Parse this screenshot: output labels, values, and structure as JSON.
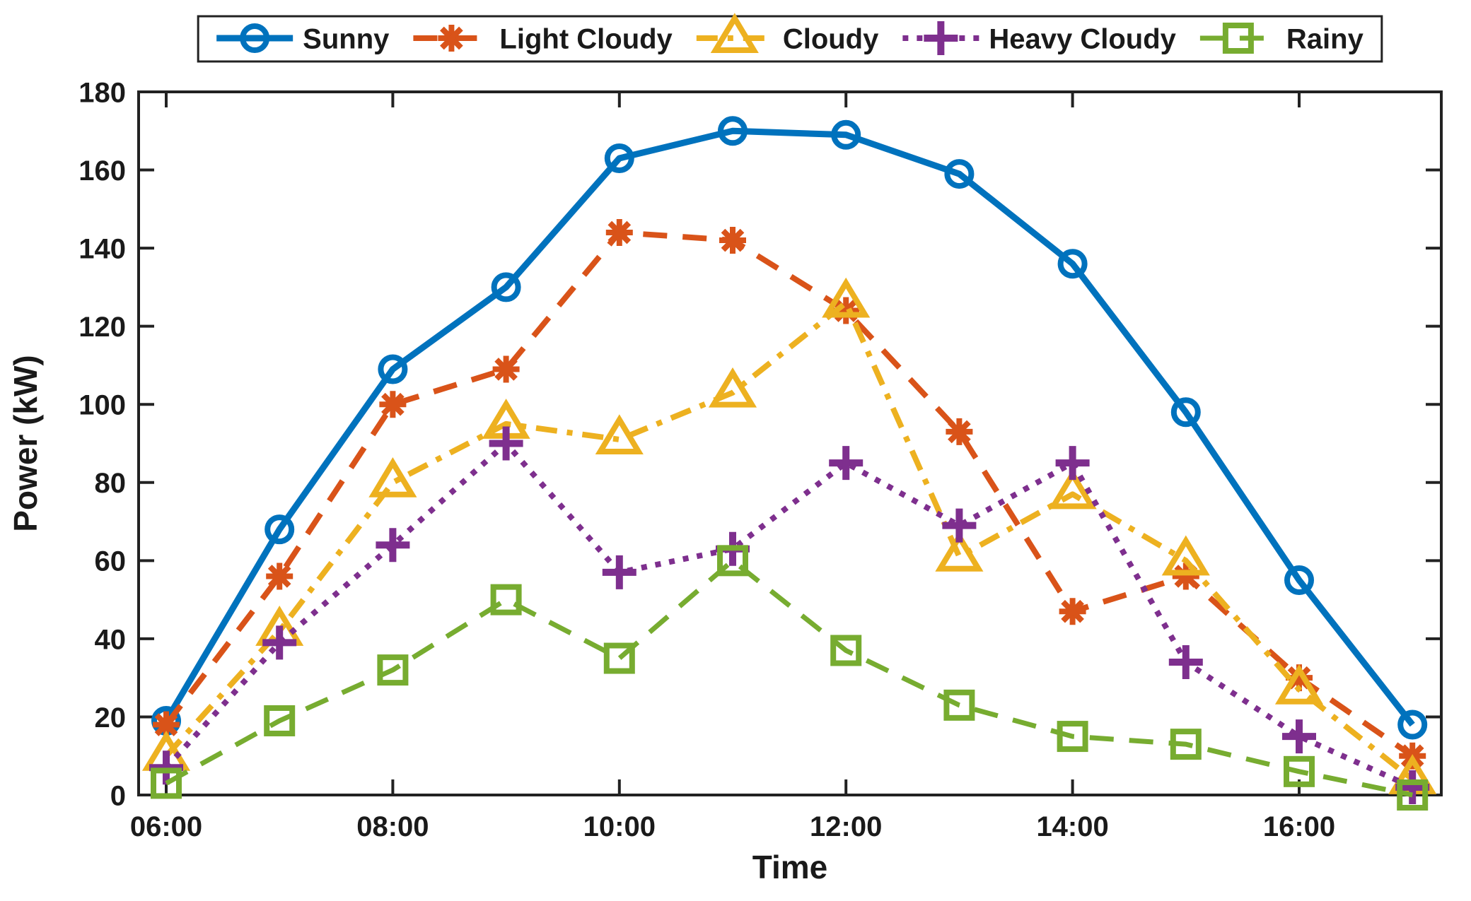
{
  "figure": {
    "background": "#ffffff",
    "axis_color": "#222222",
    "text_color": "#1a1a1a"
  },
  "chart_data": {
    "type": "line",
    "title": "",
    "xlabel": "Time",
    "ylabel": "Power (kW)",
    "x_categories": [
      "06:00",
      "07:00",
      "08:00",
      "09:00",
      "10:00",
      "11:00",
      "12:00",
      "13:00",
      "14:00",
      "15:00",
      "16:00",
      "17:00"
    ],
    "x_tick_labels": [
      "06:00",
      "08:00",
      "10:00",
      "12:00",
      "14:00",
      "16:00"
    ],
    "y_ticks": [
      0,
      20,
      40,
      60,
      80,
      100,
      120,
      140,
      160,
      180
    ],
    "ylim": [
      0,
      180
    ],
    "grid": false,
    "legend_position": "top-horizontal-boxed",
    "series": [
      {
        "name": "Sunny",
        "color": "#0072BD",
        "line_style": "solid",
        "marker": "circle",
        "line_width": 9,
        "values": [
          19,
          68,
          109,
          130,
          163,
          170,
          169,
          159,
          136,
          98,
          55,
          18
        ]
      },
      {
        "name": "Light Cloudy",
        "color": "#D95319",
        "line_style": "dashed",
        "marker": "asterisk",
        "line_width": 8,
        "values": [
          18,
          56,
          100,
          109,
          144,
          142,
          124,
          93,
          47,
          56,
          30,
          10
        ]
      },
      {
        "name": "Cloudy",
        "color": "#EDB120",
        "line_style": "dash-dot",
        "marker": "triangle-up",
        "line_width": 8,
        "values": [
          10,
          42,
          80,
          95,
          91,
          103,
          126,
          61,
          77,
          60,
          27,
          4
        ]
      },
      {
        "name": "Heavy Cloudy",
        "color": "#7E2F8E",
        "line_style": "dotted",
        "marker": "plus",
        "line_width": 8,
        "values": [
          7,
          39,
          64,
          90,
          57,
          63,
          85,
          69,
          85,
          34,
          15,
          2
        ]
      },
      {
        "name": "Rainy",
        "color": "#77AC30",
        "line_style": "dashed",
        "marker": "square",
        "line_width": 7,
        "values": [
          3,
          19,
          32,
          50,
          35,
          60,
          37,
          23,
          15,
          13,
          6,
          0
        ]
      }
    ]
  }
}
